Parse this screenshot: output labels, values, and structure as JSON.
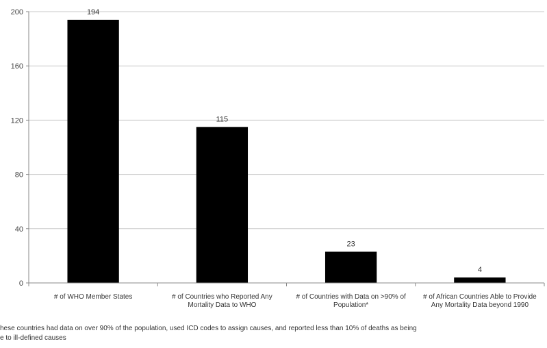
{
  "chart_data": {
    "type": "bar",
    "categories": [
      "# of WHO Member States",
      "# of Countries who Reported Any Mortality Data to WHO",
      "# of Countries with Data on >90% of Population*",
      "# of African Countries Able to Provide Any Mortality Data beyond 1990"
    ],
    "values": [
      194,
      115,
      23,
      4
    ],
    "data_labels": [
      "194",
      "115",
      "23",
      "4"
    ],
    "ylim": [
      0,
      200
    ],
    "yticks": [
      0,
      40,
      80,
      120,
      160,
      200
    ],
    "grid": true,
    "legend": "none",
    "bar_color": "#000000",
    "grid_color": "#c8c8c8",
    "xlabel": "",
    "ylabel": ""
  },
  "footnote": "hese countries had data on over 90% of the population, used ICD codes to assign causes, and reported less than 10% of deaths as being\ne to ill-defined causes"
}
